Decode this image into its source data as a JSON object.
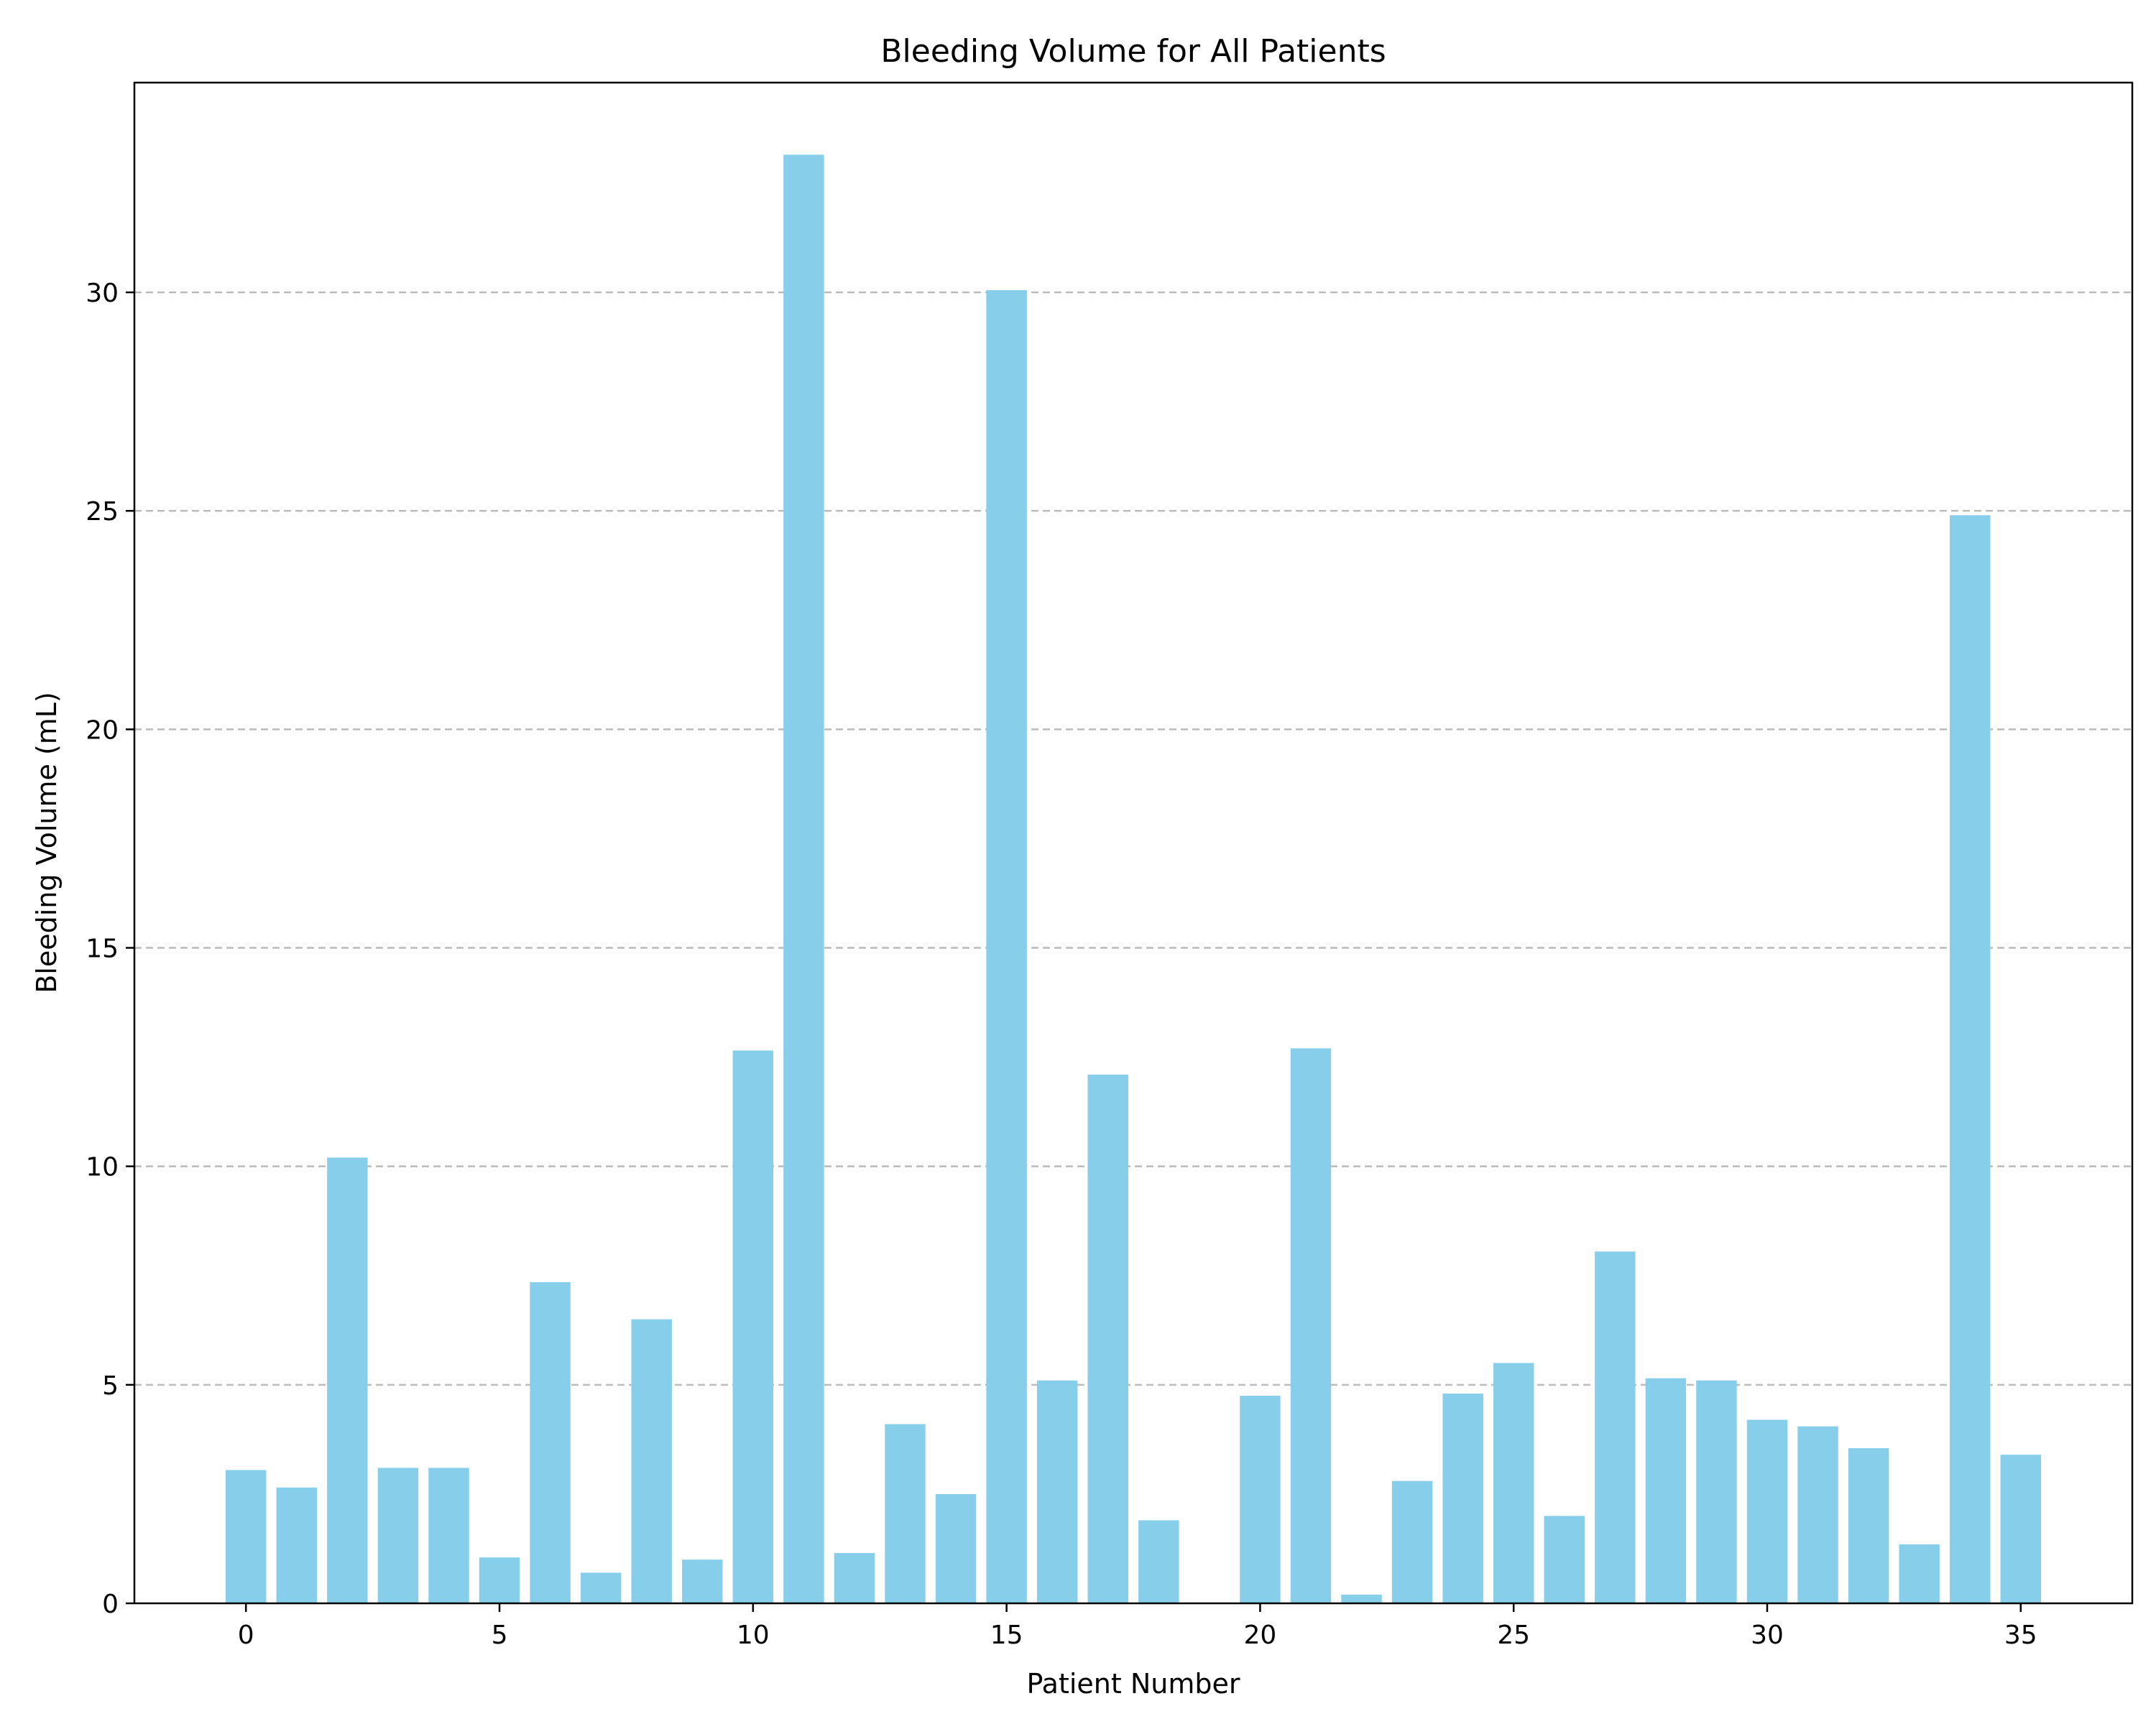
{
  "chart_data": {
    "type": "bar",
    "title": "Bleeding Volume for All Patients",
    "xlabel": "Patient Number",
    "ylabel": "Bleeding Volume (mL)",
    "x": [
      0,
      1,
      2,
      3,
      4,
      5,
      6,
      7,
      8,
      9,
      10,
      11,
      12,
      13,
      14,
      15,
      16,
      17,
      18,
      19,
      20,
      21,
      22,
      23,
      24,
      25,
      26,
      27,
      28,
      29,
      30,
      31,
      32,
      33,
      34,
      35
    ],
    "values": [
      3.05,
      2.65,
      10.2,
      3.1,
      3.1,
      1.05,
      7.35,
      0.7,
      6.5,
      1.0,
      12.65,
      33.15,
      1.15,
      4.1,
      2.5,
      30.05,
      5.1,
      12.1,
      1.9,
      0.0,
      4.75,
      12.7,
      0.2,
      2.8,
      4.8,
      5.5,
      2.0,
      8.05,
      5.15,
      5.1,
      4.2,
      4.05,
      3.55,
      1.35,
      24.9,
      3.4
    ],
    "xticks": [
      0,
      5,
      10,
      15,
      20,
      25,
      30,
      35
    ],
    "yticks": [
      0,
      5,
      10,
      15,
      20,
      25,
      30
    ],
    "xlim": [
      -2.2,
      37.2
    ],
    "ylim": [
      0,
      34.8
    ],
    "grid": "y-axis dashed",
    "bar_color": "#87CEEB",
    "grid_color": "#b0b0b0"
  }
}
